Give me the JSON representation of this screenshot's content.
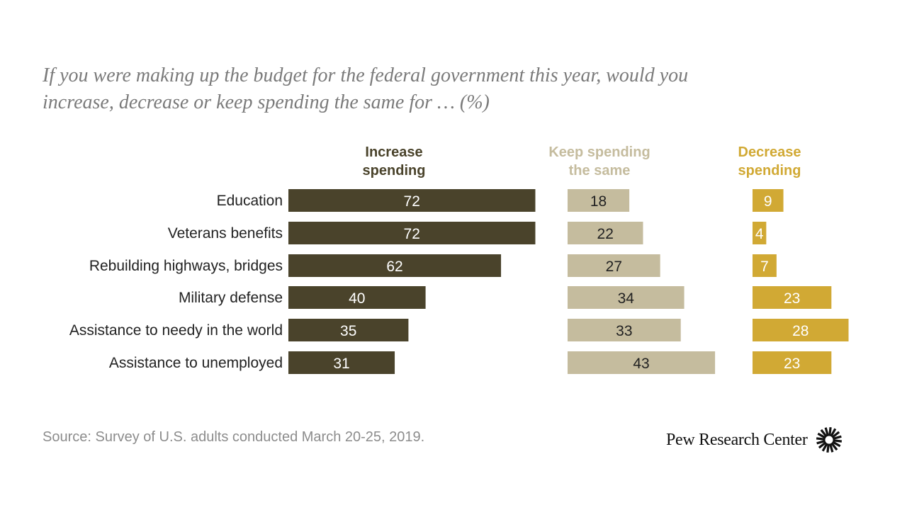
{
  "title": {
    "line1": "If you were making up the budget for the federal government this year, would you",
    "line2": "increase, decrease or keep spending the same for … (%)"
  },
  "chart_data": {
    "type": "bar",
    "orientation": "horizontal",
    "layout": "small-multiples",
    "categories": [
      "Education",
      "Veterans benefits",
      "Rebuilding highways, bridges",
      "Military defense",
      "Assistance to needy in the world",
      "Assistance to unemployed"
    ],
    "series": [
      {
        "name_lines": [
          "Increase",
          "spending"
        ],
        "color": "#4a432b",
        "label_color": "#ffffff",
        "header_color": "#4a432b",
        "values": [
          72,
          72,
          62,
          40,
          35,
          31
        ]
      },
      {
        "name_lines": [
          "Keep spending",
          "the same"
        ],
        "color": "#c5bc9e",
        "label_color": "#222222",
        "header_color": "#c5bc9e",
        "values": [
          18,
          22,
          27,
          34,
          33,
          43
        ]
      },
      {
        "name_lines": [
          "Decrease",
          "spending"
        ],
        "color": "#d1a934",
        "label_color": "#ffffff",
        "header_color": "#d1a934",
        "values": [
          9,
          4,
          7,
          23,
          28,
          23
        ]
      }
    ],
    "xlim": [
      0,
      100
    ],
    "grid": false,
    "legend": "column headers"
  },
  "source": "Source: Survey of U.S. adults conducted March 20-25, 2019.",
  "branding": {
    "name": "Pew Research Center",
    "icon": "pew-sunburst-icon"
  }
}
